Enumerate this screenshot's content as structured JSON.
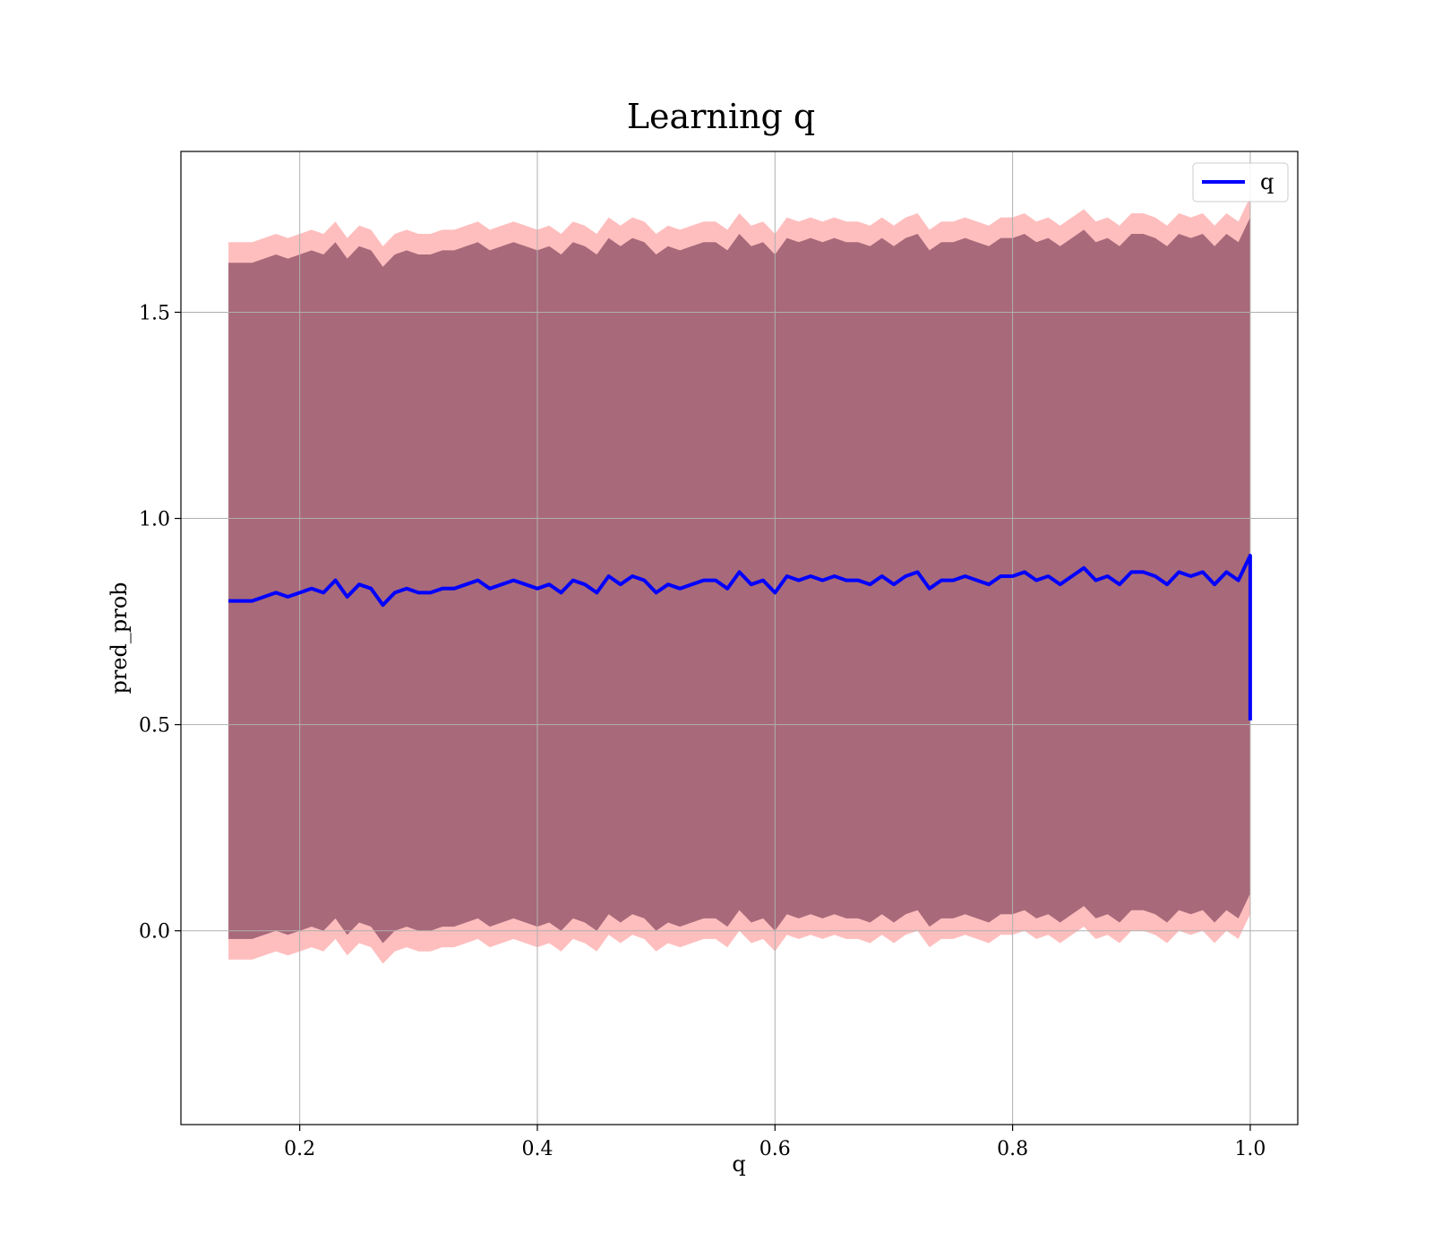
{
  "chart_data": {
    "type": "line",
    "title": "Learning q",
    "xlabel": "q",
    "ylabel": "pred_prob",
    "xlim": [
      0.1,
      1.04
    ],
    "ylim": [
      -0.47,
      1.89
    ],
    "grid": true,
    "legend_position": "top-right",
    "x_ticks": [
      0.2,
      0.4,
      0.6,
      0.8,
      1.0
    ],
    "x_tick_labels": [
      "0.2",
      "0.4",
      "0.6",
      "0.8",
      "1.0"
    ],
    "y_ticks": [
      0.0,
      0.5,
      1.0,
      1.5
    ],
    "y_tick_labels": [
      "0.0",
      "0.5",
      "1.0",
      "1.5"
    ],
    "x": [
      0.14,
      0.15,
      0.16,
      0.17,
      0.18,
      0.19,
      0.2,
      0.21,
      0.22,
      0.23,
      0.24,
      0.25,
      0.26,
      0.27,
      0.28,
      0.29,
      0.3,
      0.31,
      0.32,
      0.33,
      0.34,
      0.35,
      0.36,
      0.37,
      0.38,
      0.39,
      0.4,
      0.41,
      0.42,
      0.43,
      0.44,
      0.45,
      0.46,
      0.47,
      0.48,
      0.49,
      0.5,
      0.51,
      0.52,
      0.53,
      0.54,
      0.55,
      0.56,
      0.57,
      0.58,
      0.59,
      0.6,
      0.61,
      0.62,
      0.63,
      0.64,
      0.65,
      0.66,
      0.67,
      0.68,
      0.69,
      0.7,
      0.71,
      0.72,
      0.73,
      0.74,
      0.75,
      0.76,
      0.77,
      0.78,
      0.79,
      0.8,
      0.81,
      0.82,
      0.83,
      0.84,
      0.85,
      0.86,
      0.87,
      0.88,
      0.89,
      0.9,
      0.91,
      0.92,
      0.93,
      0.94,
      0.95,
      0.96,
      0.97,
      0.98,
      0.99,
      1.0
    ],
    "series": [
      {
        "name": "q",
        "color": "#0000ff",
        "values": [
          0.8,
          0.8,
          0.8,
          0.81,
          0.82,
          0.81,
          0.82,
          0.83,
          0.82,
          0.85,
          0.81,
          0.84,
          0.83,
          0.79,
          0.82,
          0.83,
          0.82,
          0.82,
          0.83,
          0.83,
          0.84,
          0.85,
          0.83,
          0.84,
          0.85,
          0.84,
          0.83,
          0.84,
          0.82,
          0.85,
          0.84,
          0.82,
          0.86,
          0.84,
          0.86,
          0.85,
          0.82,
          0.84,
          0.83,
          0.84,
          0.85,
          0.85,
          0.83,
          0.87,
          0.84,
          0.85,
          0.82,
          0.86,
          0.85,
          0.86,
          0.85,
          0.86,
          0.85,
          0.85,
          0.84,
          0.86,
          0.84,
          0.86,
          0.87,
          0.83,
          0.85,
          0.85,
          0.86,
          0.85,
          0.84,
          0.86,
          0.86,
          0.87,
          0.85,
          0.86,
          0.84,
          0.86,
          0.88,
          0.85,
          0.86,
          0.84,
          0.87,
          0.87,
          0.86,
          0.84,
          0.87,
          0.86,
          0.87,
          0.84,
          0.87,
          0.85,
          0.91
        ],
        "end_drop_to": 0.51
      }
    ],
    "bands": [
      {
        "color": "#ff6f6f",
        "opacity": 0.45,
        "upper_offset": 0.87,
        "lower_offset": 0.87
      },
      {
        "color": "#8b4c63",
        "opacity": 0.75,
        "upper_offset": 0.82,
        "lower_offset": 0.82
      }
    ]
  }
}
